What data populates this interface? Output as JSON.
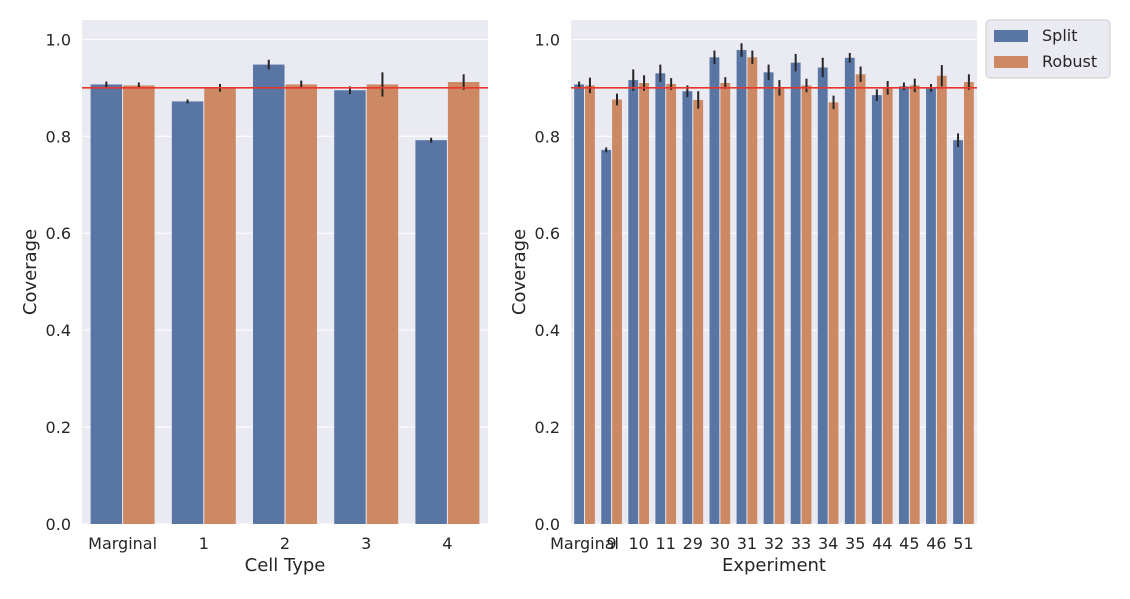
{
  "colors": {
    "split": "#5875a4",
    "robust": "#cc8963",
    "target": "#e8362b",
    "errorbar": "#262626"
  },
  "legend": {
    "items": [
      "Split",
      "Robust"
    ],
    "placement": "upper right, outside right panel"
  },
  "chart_data": [
    {
      "type": "bar",
      "xlabel": "Cell Type",
      "ylabel": "Coverage",
      "ylim": [
        0,
        1.04
      ],
      "yticks": [
        "0.0",
        "0.2",
        "0.4",
        "0.6",
        "0.8",
        "1.0"
      ],
      "grid": true,
      "reference_line": 0.9,
      "categories": [
        "Marginal",
        "1",
        "2",
        "3",
        "4"
      ],
      "series": [
        {
          "name": "Split",
          "values": [
            0.907,
            0.872,
            0.948,
            0.895,
            0.792
          ],
          "error": [
            0.006,
            0.004,
            0.01,
            0.008,
            0.005
          ]
        },
        {
          "name": "Robust",
          "values": [
            0.905,
            0.9,
            0.907,
            0.907,
            0.912
          ],
          "error": [
            0.006,
            0.008,
            0.008,
            0.025,
            0.016
          ]
        }
      ]
    },
    {
      "type": "bar",
      "xlabel": "Experiment",
      "ylabel": "Coverage",
      "ylim": [
        0,
        1.04
      ],
      "yticks": [
        "0.0",
        "0.2",
        "0.4",
        "0.6",
        "0.8",
        "1.0"
      ],
      "grid": true,
      "reference_line": 0.9,
      "categories": [
        "Marginal",
        "9",
        "10",
        "11",
        "29",
        "30",
        "31",
        "32",
        "33",
        "34",
        "35",
        "44",
        "45",
        "46",
        "51"
      ],
      "series": [
        {
          "name": "Split",
          "values": [
            0.907,
            0.772,
            0.916,
            0.93,
            0.893,
            0.963,
            0.978,
            0.932,
            0.952,
            0.942,
            0.962,
            0.885,
            0.903,
            0.9,
            0.792
          ],
          "error": [
            0.006,
            0.005,
            0.022,
            0.018,
            0.012,
            0.014,
            0.014,
            0.016,
            0.018,
            0.02,
            0.01,
            0.012,
            0.008,
            0.008,
            0.014
          ]
        },
        {
          "name": "Robust",
          "values": [
            0.905,
            0.876,
            0.91,
            0.908,
            0.875,
            0.91,
            0.963,
            0.9,
            0.905,
            0.87,
            0.928,
            0.9,
            0.905,
            0.925,
            0.912
          ],
          "error": [
            0.016,
            0.012,
            0.016,
            0.012,
            0.018,
            0.012,
            0.014,
            0.016,
            0.014,
            0.014,
            0.016,
            0.014,
            0.014,
            0.022,
            0.016
          ]
        }
      ]
    }
  ]
}
